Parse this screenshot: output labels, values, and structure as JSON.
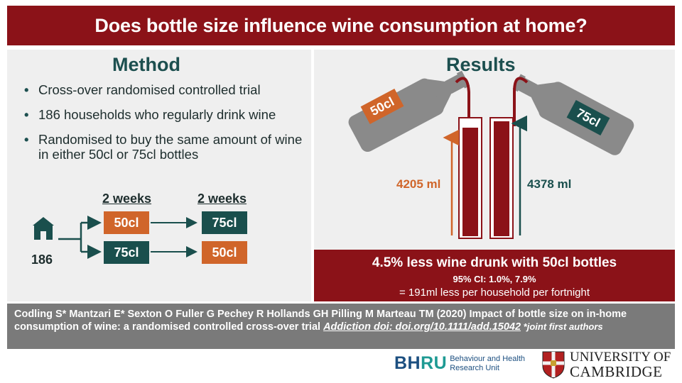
{
  "header": {
    "title": "Does bottle size influence wine consumption at home?"
  },
  "method": {
    "title": "Method",
    "bullets": [
      "Cross-over randomised controlled trial",
      "186 households who regularly drink wine",
      "Randomised to buy the same amount of wine in either 50cl or 75cl bottles"
    ],
    "diagram": {
      "period1_label": "2 weeks",
      "period2_label": "2 weeks",
      "households": "186",
      "arm1": [
        "50cl",
        "75cl"
      ],
      "arm2": [
        "75cl",
        "50cl"
      ]
    }
  },
  "results": {
    "title": "Results",
    "bottle_left": "50cl",
    "bottle_right": "75cl",
    "left_ml": "4205 ml",
    "right_ml": "4378 ml",
    "headline": "4.5% less wine drunk with 50cl bottles",
    "ci": "95% CI: 1.0%, 7.9%",
    "per_household": "= 191ml less per household per fortnight"
  },
  "citation": {
    "text": "Codling S* Mantzari E* Sexton O  Fuller G Pechey R  Hollands GH Pilling M Marteau TM (2020) Impact of bottle size on in-home consumption of wine: a randomised controlled cross-over trial ",
    "link": "Addiction doi: doi.org/10.1111/add.15042",
    "note": " *joint first authors"
  },
  "logos": {
    "bhru_mark_1": "BH",
    "bhru_mark_2": "RU",
    "bhru_line1": "Behaviour and Health",
    "bhru_line2": "Research Unit",
    "cam_line1": "UNIVERSITY OF",
    "cam_line2": "CAMBRIDGE"
  },
  "colors": {
    "maroon": "#8b1218",
    "teal": "#1a4f4d",
    "orange": "#d0652a",
    "grey": "#7a7a7a",
    "bottle": "#8a8a8a"
  }
}
